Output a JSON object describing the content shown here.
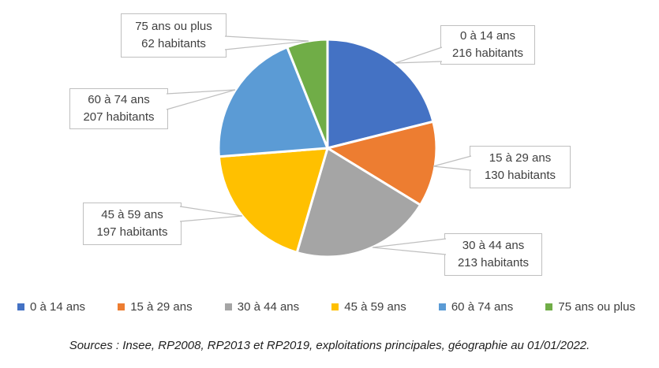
{
  "chart_data": {
    "type": "pie",
    "title": "",
    "categories": [
      "0 à 14 ans",
      "15 à 29 ans",
      "30 à 44 ans",
      "45 à 59 ans",
      "60 à 74 ans",
      "75 ans ou plus"
    ],
    "values": [
      216,
      130,
      213,
      197,
      207,
      62
    ],
    "unit": "habitants",
    "colors": [
      "#4472C4",
      "#ED7D31",
      "#A5A5A5",
      "#FFC000",
      "#5B9BD5",
      "#70AD47"
    ],
    "slice_border_color": "#FFFFFF",
    "callout_border_color": "#BFBFBF",
    "legend_position": "bottom",
    "start_angle_deg": 0,
    "direction": "clockwise",
    "data_labels": "callout"
  },
  "callouts": [
    {
      "label": "0 à 14 ans",
      "value_label": "216 habitants"
    },
    {
      "label": "15 à 29 ans",
      "value_label": "130 habitants"
    },
    {
      "label": "30 à 44 ans",
      "value_label": "213 habitants"
    },
    {
      "label": "45 à 59 ans",
      "value_label": "197 habitants"
    },
    {
      "label": "60 à 74 ans",
      "value_label": "207 habitants"
    },
    {
      "label": "75 ans ou plus",
      "value_label": "62 habitants"
    }
  ],
  "legend": {
    "items": [
      {
        "label": "0 à 14 ans"
      },
      {
        "label": "15 à 29 ans"
      },
      {
        "label": "30 à 44 ans"
      },
      {
        "label": "45 à 59 ans"
      },
      {
        "label": "60 à 74 ans"
      },
      {
        "label": "75 ans ou plus"
      }
    ]
  },
  "source": {
    "text": "Sources : Insee, RP2008, RP2013 et RP2019, exploitations principales, géographie au 01/01/2022."
  }
}
